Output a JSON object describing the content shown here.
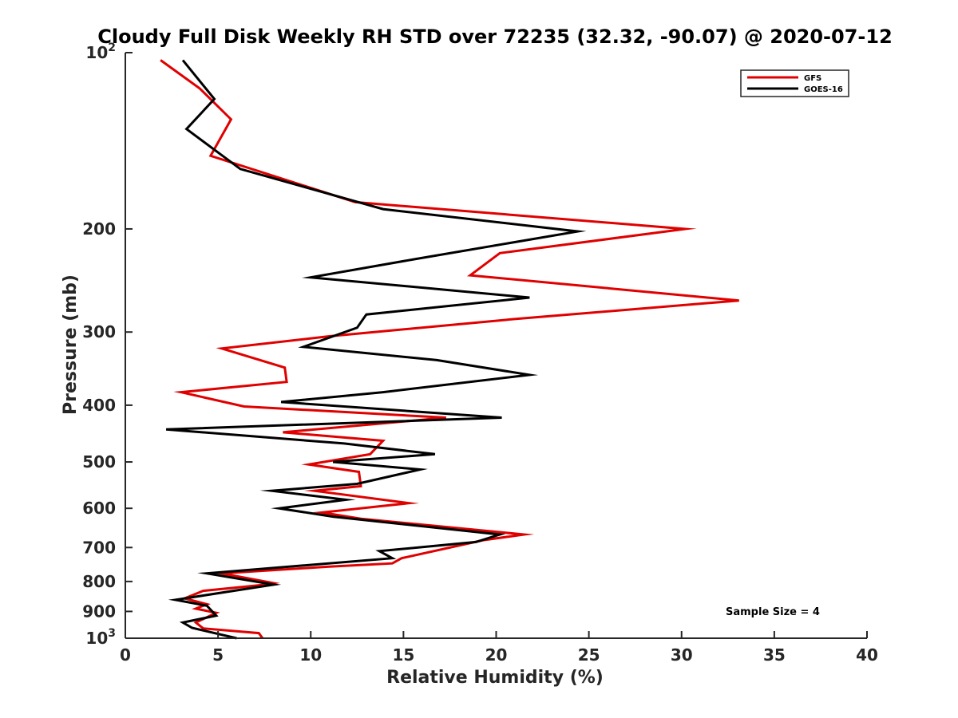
{
  "chart_data": {
    "type": "line",
    "title": "Cloudy Full Disk Weekly RH STD over 72235 (32.32, -90.07) @ 2020-07-12",
    "xlabel": "Relative Humidity (%)",
    "ylabel": "Pressure (mb)",
    "xlim": [
      0,
      40
    ],
    "ylim": [
      100,
      1000
    ],
    "yscale": "log",
    "y_reversed": true,
    "x_ticks": [
      "0",
      "5",
      "10",
      "15",
      "20",
      "25",
      "30",
      "35",
      "40"
    ],
    "y_ticks": [
      {
        "value": 100,
        "base": "10",
        "exp": "2"
      },
      {
        "value": 200,
        "label": "200"
      },
      {
        "value": 300,
        "label": "300"
      },
      {
        "value": 400,
        "label": "400"
      },
      {
        "value": 500,
        "label": "500"
      },
      {
        "value": 600,
        "label": "600"
      },
      {
        "value": 700,
        "label": "700"
      },
      {
        "value": 800,
        "label": "800"
      },
      {
        "value": 900,
        "label": "900"
      },
      {
        "value": 1000,
        "base": "10",
        "exp": "3"
      }
    ],
    "legend_position": "top-right",
    "annotation": "Sample Size = 4",
    "grid": false,
    "series": [
      {
        "name": "GFS",
        "color": "#e00000",
        "points": [
          [
            1.9,
            103
          ],
          [
            4.0,
            115
          ],
          [
            5.7,
            130
          ],
          [
            4.6,
            150
          ],
          [
            12.4,
            180
          ],
          [
            30.2,
            200
          ],
          [
            20.2,
            220
          ],
          [
            18.6,
            240
          ],
          [
            33.1,
            265
          ],
          [
            21.0,
            285
          ],
          [
            11.0,
            305
          ],
          [
            5.2,
            320
          ],
          [
            8.6,
            345
          ],
          [
            8.7,
            365
          ],
          [
            3.0,
            380
          ],
          [
            6.4,
            402
          ],
          [
            17.3,
            420
          ],
          [
            8.5,
            445
          ],
          [
            13.9,
            460
          ],
          [
            13.2,
            485
          ],
          [
            9.9,
            505
          ],
          [
            12.6,
            520
          ],
          [
            12.7,
            550
          ],
          [
            10.2,
            560
          ],
          [
            15.3,
            588
          ],
          [
            10.6,
            610
          ],
          [
            12.7,
            625
          ],
          [
            21.5,
            665
          ],
          [
            19.3,
            680
          ],
          [
            14.9,
            730
          ],
          [
            14.4,
            745
          ],
          [
            10.9,
            755
          ],
          [
            5.2,
            775
          ],
          [
            8.0,
            805
          ],
          [
            7.6,
            810
          ],
          [
            4.2,
            830
          ],
          [
            3.2,
            855
          ],
          [
            4.4,
            875
          ],
          [
            3.8,
            890
          ],
          [
            4.9,
            905
          ],
          [
            3.8,
            940
          ],
          [
            4.2,
            962
          ],
          [
            7.2,
            980
          ],
          [
            7.4,
            1000
          ]
        ]
      },
      {
        "name": "GOES-16",
        "color": "#000000",
        "points": [
          [
            3.1,
            103
          ],
          [
            4.8,
            120
          ],
          [
            3.3,
            135
          ],
          [
            6.2,
            158
          ],
          [
            13.9,
            185
          ],
          [
            24.4,
            202
          ],
          [
            15.7,
            225
          ],
          [
            10.0,
            242
          ],
          [
            21.8,
            262
          ],
          [
            13.0,
            280
          ],
          [
            12.5,
            295
          ],
          [
            9.6,
            318
          ],
          [
            16.8,
            335
          ],
          [
            21.8,
            355
          ],
          [
            13.9,
            380
          ],
          [
            8.4,
            395
          ],
          [
            20.3,
            420
          ],
          [
            2.2,
            440
          ],
          [
            11.8,
            465
          ],
          [
            16.7,
            485
          ],
          [
            11.2,
            500
          ],
          [
            15.9,
            515
          ],
          [
            12.5,
            545
          ],
          [
            7.9,
            560
          ],
          [
            11.9,
            580
          ],
          [
            8.3,
            600
          ],
          [
            11.2,
            620
          ],
          [
            20.2,
            665
          ],
          [
            18.9,
            685
          ],
          [
            13.7,
            710
          ],
          [
            14.4,
            730
          ],
          [
            4.4,
            775
          ],
          [
            8.0,
            810
          ],
          [
            2.7,
            860
          ],
          [
            4.4,
            880
          ],
          [
            4.9,
            915
          ],
          [
            3.1,
            940
          ],
          [
            3.6,
            960
          ],
          [
            6.0,
            1000
          ]
        ]
      }
    ]
  }
}
